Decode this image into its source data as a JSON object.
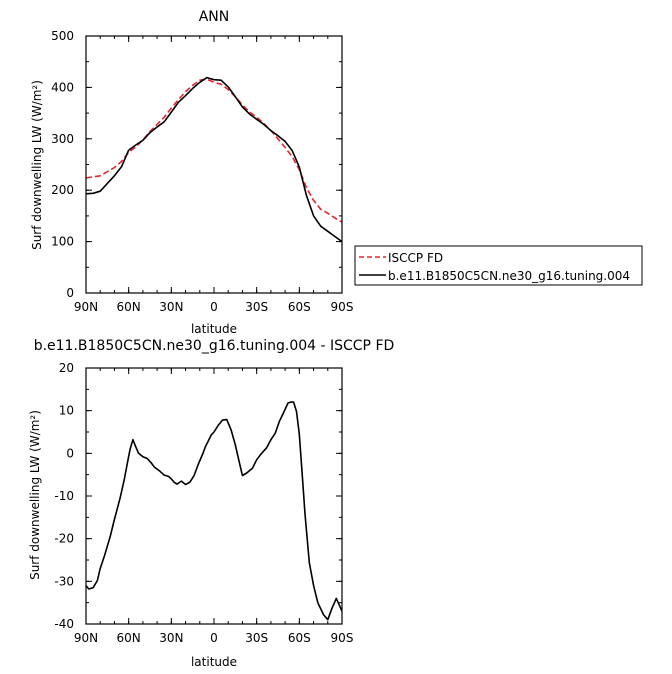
{
  "chart_data": [
    {
      "type": "line",
      "title": "ANN",
      "xlabel": "latitude",
      "ylabel": "Surf downwelling LW (W/m²)",
      "xlim": [
        90,
        -90
      ],
      "ylim": [
        0,
        500
      ],
      "xticks": [
        90,
        60,
        30,
        0,
        -30,
        -60,
        -90
      ],
      "xtick_labels": [
        "90N",
        "60N",
        "30N",
        "0",
        "30S",
        "60S",
        "90S"
      ],
      "yticks": [
        0,
        100,
        200,
        300,
        400,
        500
      ],
      "legend_position": "right",
      "series": [
        {
          "name": "ISCCP FD",
          "color": "#e8252a",
          "dash": "dashed",
          "x": [
            90,
            85,
            80,
            75,
            70,
            65,
            60,
            55,
            50,
            45,
            40,
            35,
            30,
            25,
            20,
            15,
            10,
            5,
            0,
            -5,
            -10,
            -15,
            -20,
            -25,
            -30,
            -35,
            -40,
            -45,
            -50,
            -55,
            -60,
            -65,
            -70,
            -75,
            -80,
            -85,
            -90
          ],
          "y": [
            224,
            226,
            228,
            236,
            244,
            256,
            274,
            284,
            298,
            314,
            328,
            342,
            360,
            376,
            392,
            404,
            414,
            416,
            410,
            406,
            396,
            382,
            366,
            352,
            342,
            330,
            316,
            300,
            283,
            265,
            240,
            205,
            180,
            163,
            155,
            146,
            138
          ]
        },
        {
          "name": "b.e11.B1850C5CN.ne30_g16.tuning.004",
          "color": "#000000",
          "dash": "solid",
          "x": [
            90,
            85,
            80,
            75,
            70,
            65,
            60,
            55,
            50,
            45,
            40,
            35,
            30,
            25,
            20,
            15,
            10,
            5,
            0,
            -5,
            -10,
            -15,
            -20,
            -25,
            -30,
            -35,
            -40,
            -45,
            -50,
            -55,
            -60,
            -65,
            -70,
            -75,
            -80,
            -85,
            -90
          ],
          "y": [
            193,
            194,
            198,
            213,
            228,
            246,
            278,
            288,
            297,
            312,
            323,
            333,
            352,
            371,
            384,
            398,
            410,
            419,
            415,
            414,
            401,
            382,
            362,
            348,
            338,
            328,
            316,
            306,
            295,
            277,
            245,
            190,
            150,
            130,
            120,
            110,
            100
          ]
        }
      ]
    },
    {
      "type": "line",
      "title": "b.e11.B1850C5CN.ne30_g16.tuning.004 - ISCCP FD",
      "xlabel": "latitude",
      "ylabel": "Surf downwelling LW (W/m²)",
      "xlim": [
        90,
        -90
      ],
      "ylim": [
        -40,
        20
      ],
      "xticks": [
        90,
        60,
        30,
        0,
        -30,
        -60,
        -90
      ],
      "xtick_labels": [
        "90N",
        "60N",
        "30N",
        "0",
        "30S",
        "60S",
        "90S"
      ],
      "yticks": [
        -40,
        -30,
        -20,
        -10,
        0,
        10,
        20
      ],
      "series": [
        {
          "color": "#000000",
          "dash": "solid",
          "x": [
            90,
            88,
            85,
            82,
            80,
            77,
            73,
            70,
            66,
            63,
            61,
            59,
            57,
            55,
            53,
            50,
            47,
            44,
            42,
            40,
            38,
            35,
            32,
            30,
            28,
            26,
            23,
            20,
            17,
            14,
            11,
            8,
            6,
            4,
            2,
            0,
            -3,
            -6,
            -9,
            -12,
            -15,
            -18,
            -20,
            -23,
            -27,
            -30,
            -33,
            -37,
            -40,
            -43,
            -46,
            -49,
            -52,
            -54,
            -56,
            -58,
            -60,
            -62,
            -64,
            -67,
            -70,
            -73,
            -77,
            -80,
            -83,
            -86,
            -88,
            -90
          ],
          "y": [
            -31,
            -31.8,
            -31.5,
            -29.8,
            -27,
            -24,
            -19.5,
            -15.5,
            -10.5,
            -6,
            -2.5,
            1,
            3.2,
            1.5,
            0,
            -0.8,
            -1.2,
            -2.3,
            -3.2,
            -3.7,
            -4.2,
            -5.1,
            -5.4,
            -6,
            -6.8,
            -7.2,
            -6.5,
            -7.3,
            -6.8,
            -5.2,
            -2.5,
            -0.2,
            1.6,
            2.9,
            4.3,
            5,
            6.6,
            7.8,
            7.9,
            5.5,
            2,
            -2.4,
            -5.2,
            -4.6,
            -3.5,
            -1.5,
            -0.2,
            1.3,
            3.2,
            4.7,
            7.5,
            9.6,
            11.8,
            12,
            12,
            9.8,
            4.5,
            -4.9,
            -14.2,
            -25.6,
            -31,
            -35,
            -37.8,
            -39,
            -36.3,
            -34,
            -35.5,
            -37
          ]
        }
      ]
    }
  ]
}
